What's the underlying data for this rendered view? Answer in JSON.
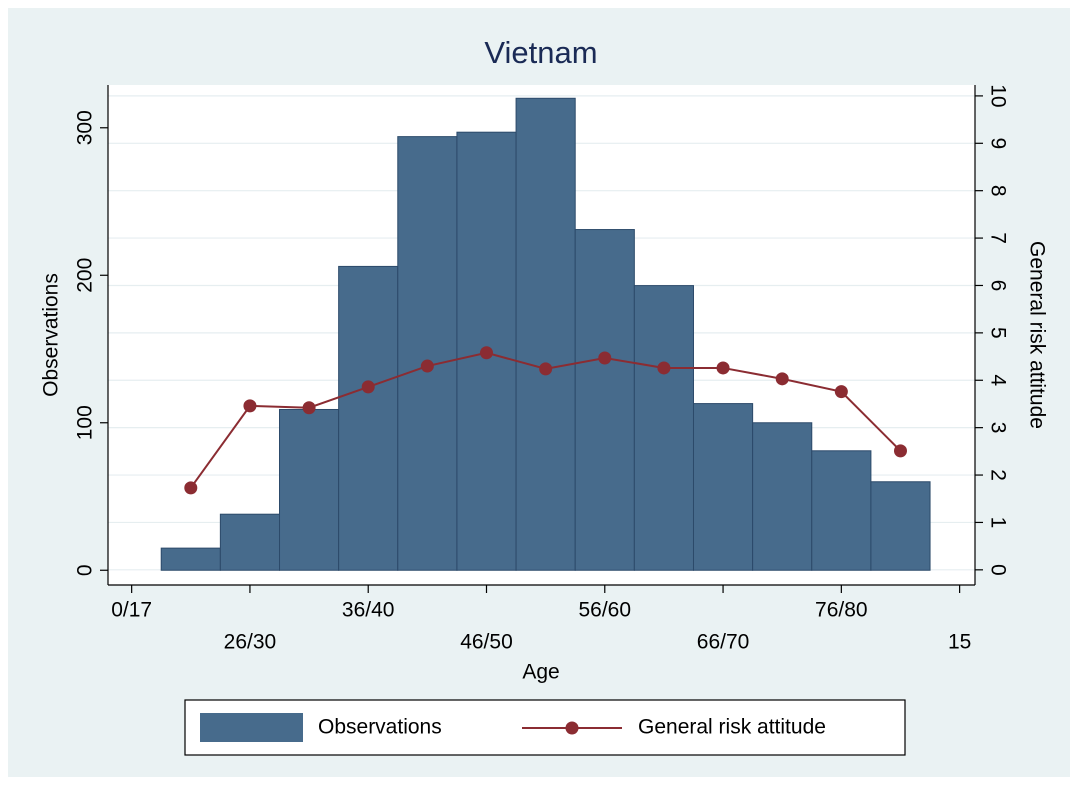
{
  "chart_data": {
    "type": "histogram",
    "title": "Vietnam",
    "x_label": "Age",
    "y_label": "Observations",
    "y2_label": "General risk attitude",
    "bins": [
      0.25,
      0.75,
      1.25,
      1.75,
      2.25,
      2.75,
      3.25,
      3.75,
      4.25,
      4.75,
      5.25,
      5.75,
      6.25,
      6.75
    ],
    "series": [
      {
        "name": "Observations",
        "type": "histogram",
        "color": "#476b8c",
        "values": [
          15,
          38,
          109,
          206,
          294,
          297,
          320,
          231,
          193,
          113,
          100,
          81,
          60
        ]
      },
      {
        "name": "General risk attitude",
        "type": "line",
        "axis": "y2",
        "color": "#8b2c32",
        "x": [
          0.5,
          1,
          1.5,
          2,
          2.5,
          3,
          3.5,
          4,
          4.5,
          5,
          5.5,
          6,
          6.5
        ],
        "values": [
          1.73,
          3.46,
          3.42,
          3.86,
          4.3,
          4.58,
          4.24,
          4.47,
          4.26,
          4.26,
          4.03,
          3.76,
          2.51
        ]
      }
    ],
    "xlim": [
      -0.2,
      7.13
    ],
    "xticks": [
      {
        "value": 0,
        "label": "0/17"
      },
      {
        "value": 1,
        "label": "26/30"
      },
      {
        "value": 2,
        "label": "36/40"
      },
      {
        "value": 3,
        "label": "46/50"
      },
      {
        "value": 4,
        "label": "56/60"
      },
      {
        "value": 5,
        "label": "66/70"
      },
      {
        "value": 6,
        "label": "76/80"
      },
      {
        "value": 7,
        "label": "15"
      }
    ],
    "ylim": [
      -10,
      329
    ],
    "yticks": [
      0,
      100,
      200,
      300
    ],
    "y2lim": [
      -0.32,
      10.23
    ],
    "y2ticks": [
      0,
      1,
      2,
      3,
      4,
      5,
      6,
      7,
      8,
      9,
      10
    ],
    "grid": true,
    "legend": "bottom"
  }
}
